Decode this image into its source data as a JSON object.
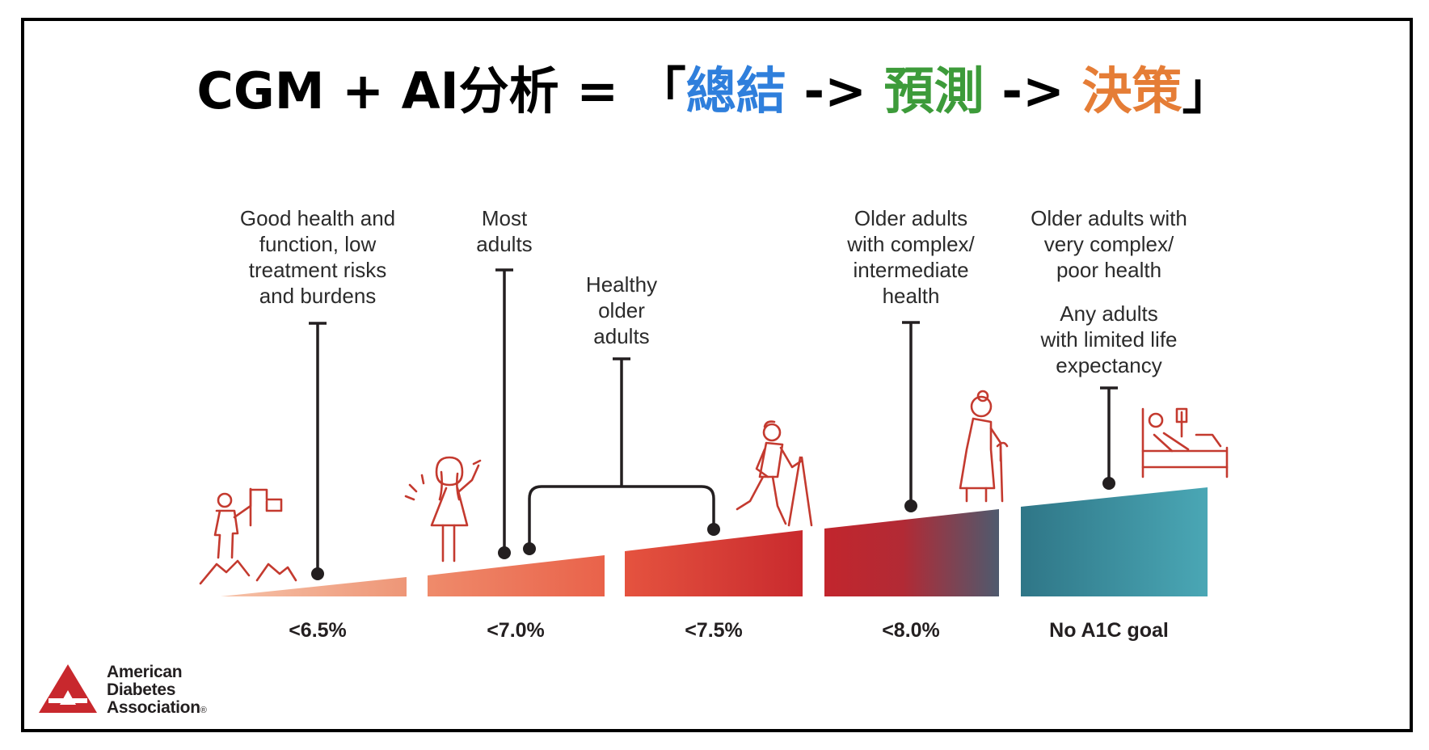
{
  "title": {
    "prefix": "CGM + AI分析 = 「",
    "word1": "總結",
    "arrow1": " -> ",
    "word2": "預測",
    "arrow2": " -> ",
    "word3": "決策",
    "suffix": "」"
  },
  "colors": {
    "blue": "#2f7fdc",
    "green": "#3d9b3a",
    "orange": "#e57d36",
    "brand_red": "#c8282d",
    "teal": "#48a3b3",
    "icon_red": "#c43a2f"
  },
  "labels": {
    "good_health": "Good health and\nfunction, low\ntreatment risks\nand burdens",
    "most_adults": "Most\nadults",
    "healthy_older": "Healthy\nolder\nadults",
    "older_complex": "Older adults\nwith complex/\nintermediate\nhealth",
    "older_very_complex": "Older adults with\nvery complex/\npoor health",
    "limited_life": "Any adults\nwith limited life\nexpectancy"
  },
  "goals": [
    "<6.5%",
    "<7.0%",
    "<7.5%",
    "<8.0%",
    "No A1C goal"
  ],
  "icons": [
    "climber-with-flag-icon",
    "waving-woman-icon",
    "hiker-with-poles-icon",
    "elderly-woman-with-cane-icon",
    "patient-in-bed-icon"
  ],
  "logo": {
    "line1": "American",
    "line2": "Diabetes",
    "line3": "Association",
    "mark": "®"
  }
}
